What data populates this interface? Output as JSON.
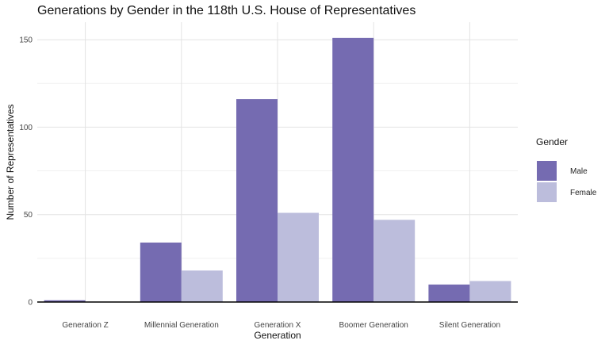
{
  "chart_data": {
    "type": "bar",
    "title": "Generations by Gender in the 118th U.S. House of Representatives",
    "xlabel": "Generation",
    "ylabel": "Number of Representatives",
    "categories": [
      "Generation Z",
      "Millennial Generation",
      "Generation X",
      "Boomer Generation",
      "Silent Generation"
    ],
    "series": [
      {
        "name": "Male",
        "color": "#756bb1",
        "values": [
          1,
          34,
          116,
          151,
          10
        ]
      },
      {
        "name": "Female",
        "color": "#bcbddc",
        "values": [
          0,
          18,
          51,
          47,
          12
        ]
      }
    ],
    "ylim": [
      0,
      160
    ],
    "yticks": [
      0,
      50,
      100,
      150
    ],
    "grid": true,
    "legend": {
      "title": "Gender",
      "position": "right"
    }
  }
}
